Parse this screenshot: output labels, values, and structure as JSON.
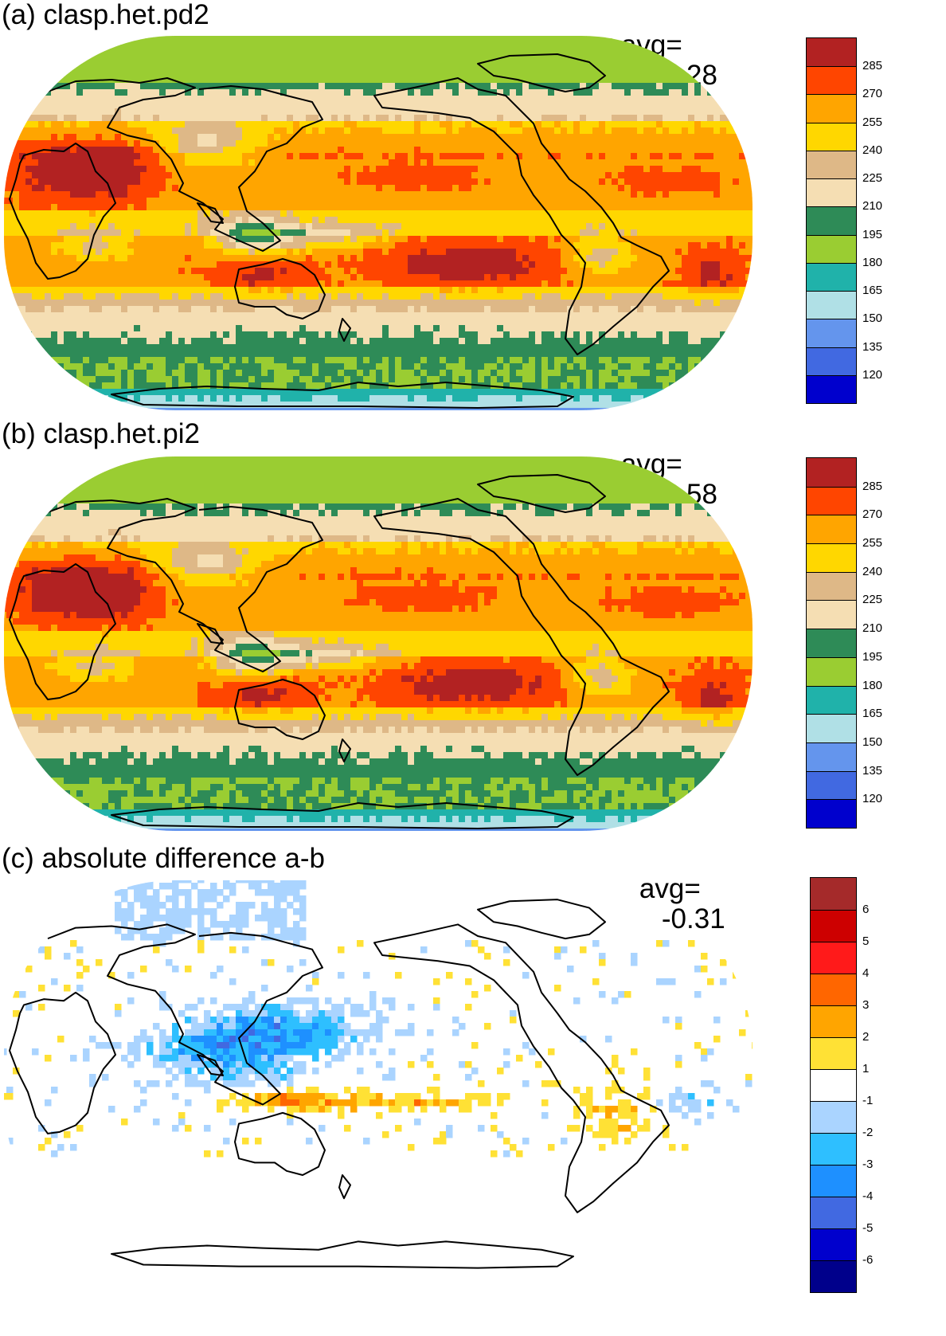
{
  "panels": [
    {
      "id": "a",
      "title": "(a) clasp.het.pd2",
      "avg_label": "avg=",
      "avg_value": "241.28",
      "colorbar": {
        "colors": [
          "#b22222",
          "#ff4500",
          "#ffa500",
          "#ffd700",
          "#deb887",
          "#f5deb3",
          "#2e8b57",
          "#9acd32",
          "#20b2aa",
          "#b0e0e6",
          "#6495ed",
          "#4169e1",
          "#0000cd"
        ],
        "labels": [
          "285",
          "270",
          "255",
          "240",
          "225",
          "210",
          "195",
          "180",
          "165",
          "150",
          "135",
          "120"
        ]
      },
      "field": "olr"
    },
    {
      "id": "b",
      "title": "(b) clasp.het.pi2",
      "avg_label": "avg=",
      "avg_value": "241.58",
      "colorbar": {
        "colors": [
          "#b22222",
          "#ff4500",
          "#ffa500",
          "#ffd700",
          "#deb887",
          "#f5deb3",
          "#2e8b57",
          "#9acd32",
          "#20b2aa",
          "#b0e0e6",
          "#6495ed",
          "#4169e1",
          "#0000cd"
        ],
        "labels": [
          "285",
          "270",
          "255",
          "240",
          "225",
          "210",
          "195",
          "180",
          "165",
          "150",
          "135",
          "120"
        ]
      },
      "field": "olr"
    },
    {
      "id": "c",
      "title": "(c) absolute difference a-b",
      "avg_label": "avg=",
      "avg_value": "-0.31",
      "colorbar": {
        "colors": [
          "#a52a2a",
          "#cd0000",
          "#ff1a1a",
          "#ff6600",
          "#ffa500",
          "#ffe135",
          "#ffffff",
          "#aad4ff",
          "#2ebfff",
          "#1e90ff",
          "#4169e1",
          "#0000cd",
          "#00008b"
        ],
        "labels": [
          "6",
          "5",
          "4",
          "3",
          "2",
          "1",
          "-1",
          "-2",
          "-3",
          "-4",
          "-5",
          "-6"
        ]
      },
      "field": "diff"
    }
  ]
}
